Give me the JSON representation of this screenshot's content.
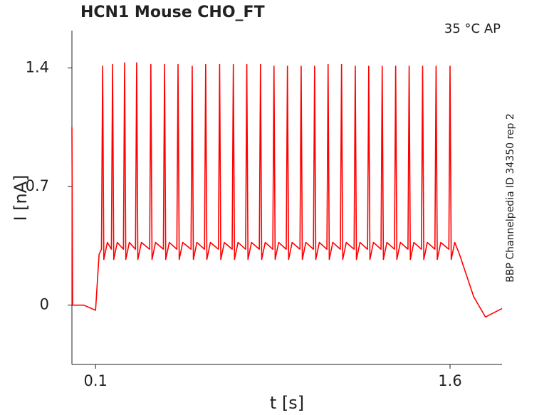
{
  "chart_data": {
    "type": "line",
    "title": "HCN1  Mouse  CHO_FT",
    "annotation": "35 °C  AP",
    "side_label": "BBP Channelpedia ID 34350 rep 2",
    "x_label": "t [s]",
    "y_label": "I [nA]",
    "xlim": [
      0,
      1.82
    ],
    "ylim": [
      -0.35,
      1.62
    ],
    "xticks": [
      0.1,
      1.6
    ],
    "yticks": [
      0,
      0.7,
      1.4
    ],
    "series": [
      {
        "color": "#ff0000",
        "x": [
          0,
          0.003,
          0.05,
          0.1,
          0.115,
          0.125,
          0.13,
          0.135,
          0.15,
          0.167,
          0.172,
          0.177,
          0.192,
          0.218,
          0.223,
          0.228,
          0.243,
          0.269,
          0.274,
          0.279,
          0.294,
          0.329,
          0.334,
          0.339,
          0.354,
          0.387,
          0.392,
          0.397,
          0.412,
          0.444,
          0.449,
          0.454,
          0.469,
          0.504,
          0.509,
          0.514,
          0.529,
          0.561,
          0.566,
          0.571,
          0.586,
          0.62,
          0.625,
          0.63,
          0.645,
          0.678,
          0.683,
          0.688,
          0.703,
          0.735,
          0.74,
          0.745,
          0.76,
          0.793,
          0.798,
          0.803,
          0.818,
          0.85,
          0.855,
          0.86,
          0.875,
          0.907,
          0.912,
          0.917,
          0.932,
          0.965,
          0.97,
          0.975,
          0.99,
          1.022,
          1.027,
          1.032,
          1.047,
          1.079,
          1.084,
          1.089,
          1.104,
          1.136,
          1.141,
          1.146,
          1.161,
          1.194,
          1.199,
          1.204,
          1.219,
          1.251,
          1.256,
          1.261,
          1.276,
          1.308,
          1.313,
          1.318,
          1.333,
          1.365,
          1.37,
          1.375,
          1.39,
          1.422,
          1.427,
          1.432,
          1.447,
          1.479,
          1.484,
          1.489,
          1.504,
          1.536,
          1.541,
          1.546,
          1.561,
          1.595,
          1.6,
          1.605,
          1.62,
          1.64,
          1.7,
          1.75,
          1.82
        ],
        "values": [
          1.05,
          0.0,
          0.0,
          -0.03,
          0.3,
          0.33,
          1.41,
          0.27,
          0.37,
          0.33,
          1.42,
          0.27,
          0.37,
          0.33,
          1.43,
          0.27,
          0.37,
          0.33,
          1.43,
          0.27,
          0.37,
          0.33,
          1.42,
          0.27,
          0.37,
          0.33,
          1.42,
          0.27,
          0.37,
          0.33,
          1.42,
          0.27,
          0.37,
          0.33,
          1.41,
          0.27,
          0.37,
          0.33,
          1.42,
          0.27,
          0.37,
          0.33,
          1.42,
          0.27,
          0.37,
          0.33,
          1.42,
          0.27,
          0.37,
          0.33,
          1.42,
          0.27,
          0.37,
          0.33,
          1.42,
          0.27,
          0.37,
          0.33,
          1.41,
          0.27,
          0.37,
          0.33,
          1.41,
          0.27,
          0.37,
          0.33,
          1.41,
          0.27,
          0.37,
          0.33,
          1.41,
          0.27,
          0.37,
          0.33,
          1.42,
          0.27,
          0.37,
          0.33,
          1.42,
          0.27,
          0.37,
          0.33,
          1.41,
          0.27,
          0.37,
          0.33,
          1.41,
          0.27,
          0.37,
          0.33,
          1.41,
          0.27,
          0.37,
          0.33,
          1.41,
          0.27,
          0.37,
          0.33,
          1.41,
          0.27,
          0.37,
          0.33,
          1.41,
          0.27,
          0.37,
          0.33,
          1.41,
          0.27,
          0.37,
          0.33,
          1.41,
          0.27,
          0.37,
          0.3,
          0.05,
          -0.07,
          -0.02
        ]
      }
    ]
  }
}
